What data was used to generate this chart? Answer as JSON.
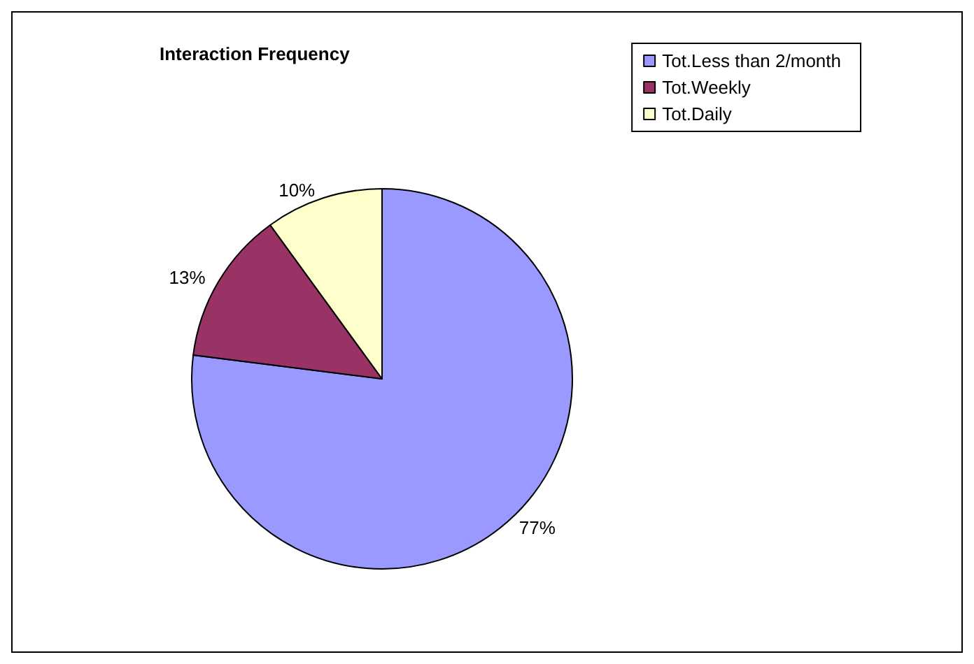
{
  "chart_data": {
    "type": "pie",
    "title": "Interaction Frequency",
    "categories": [
      "Tot.Less than 2/month",
      "Tot.Weekly",
      "Tot.Daily"
    ],
    "values": [
      77,
      13,
      10
    ],
    "colors": [
      "#9999ff",
      "#993366",
      "#ffffcc"
    ],
    "value_labels": [
      "77%",
      "13%",
      "10%"
    ],
    "legend": "top right"
  }
}
